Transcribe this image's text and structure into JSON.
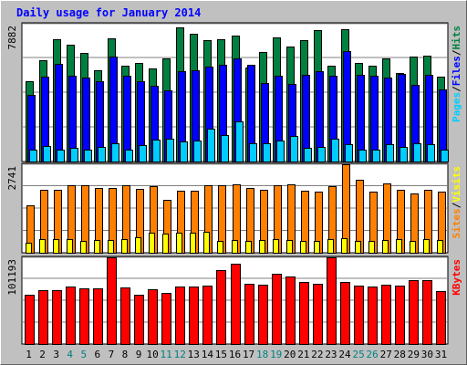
{
  "title": "Daily usage for January 2014",
  "chart_data": [
    {
      "type": "bar",
      "name": "hits-pages-files",
      "ymax_label": "7882",
      "ymax": 7882,
      "right_label": [
        {
          "text": "Pages",
          "color": "#00ccff"
        },
        {
          "text": "/",
          "color": "#000000"
        },
        {
          "text": "Files",
          "color": "#0000ff"
        },
        {
          "text": "/",
          "color": "#000000"
        },
        {
          "text": "Hits",
          "color": "#008040"
        }
      ],
      "series": [
        {
          "name": "Hits",
          "color": "#008040",
          "values": [
            4550,
            5740,
            6950,
            6660,
            6150,
            5160,
            7020,
            5430,
            5600,
            5290,
            5840,
            7600,
            7280,
            6920,
            6950,
            7170,
            5360,
            6200,
            7070,
            6540,
            6900,
            7450,
            5420,
            7520,
            5620,
            5420,
            5840,
            5040,
            5960,
            5990,
            4830
          ]
        },
        {
          "name": "Files",
          "color": "#0000ff",
          "values": [
            3780,
            4810,
            5550,
            4850,
            4760,
            4580,
            5970,
            4890,
            4540,
            4320,
            4050,
            5150,
            5180,
            5370,
            5500,
            5870,
            5480,
            4440,
            4850,
            4430,
            4930,
            5110,
            4870,
            6270,
            4910,
            4900,
            4780,
            5000,
            4360,
            4920,
            4090
          ]
        },
        {
          "name": "Pages",
          "color": "#00ccff",
          "values": [
            700,
            900,
            700,
            760,
            700,
            810,
            1050,
            700,
            930,
            1260,
            1310,
            1130,
            1180,
            1870,
            1510,
            2280,
            1020,
            1030,
            1170,
            1450,
            790,
            840,
            1280,
            960,
            700,
            700,
            1010,
            830,
            1050,
            1010,
            700
          ]
        }
      ]
    },
    {
      "type": "bar",
      "name": "visits-sites",
      "ymax_label": "2741",
      "ymax": 2741,
      "right_label": [
        {
          "text": "Sites",
          "color": "#ff8000"
        },
        {
          "text": "/",
          "color": "#000000"
        },
        {
          "text": "Visits",
          "color": "#ffff00"
        }
      ],
      "series": [
        {
          "name": "Visits",
          "color": "#ff8000",
          "values": [
            1460,
            1940,
            1940,
            2080,
            2080,
            1990,
            1990,
            2080,
            1970,
            2030,
            1630,
            1890,
            1890,
            2080,
            2080,
            2110,
            1990,
            1940,
            2080,
            2100,
            1890,
            1860,
            2050,
            2810,
            2230,
            1870,
            2130,
            1940,
            1810,
            1940,
            1880
          ]
        },
        {
          "name": "Sites",
          "color": "#ffff00",
          "values": [
            320,
            420,
            410,
            420,
            370,
            390,
            400,
            410,
            470,
            620,
            600,
            620,
            620,
            630,
            370,
            400,
            350,
            400,
            410,
            400,
            370,
            350,
            420,
            440,
            350,
            360,
            400,
            410,
            350,
            410,
            400
          ]
        }
      ]
    },
    {
      "type": "bar",
      "name": "kbytes",
      "ymax_label": "101193",
      "ymax": 101193,
      "right_label": [
        {
          "text": "KBytes",
          "color": "#ff0000"
        }
      ],
      "series": [
        {
          "name": "KBytes",
          "color": "#ff0000",
          "values": [
            56500,
            62700,
            62700,
            66400,
            64000,
            64000,
            101200,
            65700,
            56500,
            63300,
            59000,
            66400,
            66400,
            67000,
            85400,
            92800,
            69800,
            68000,
            81100,
            78000,
            71700,
            69800,
            101800,
            71700,
            67000,
            66000,
            68000,
            67000,
            74000,
            74000,
            61000
          ]
        }
      ]
    }
  ],
  "x_labels": [
    "1",
    "2",
    "3",
    "4",
    "5",
    "6",
    "7",
    "8",
    "9",
    "10",
    "11",
    "12",
    "13",
    "14",
    "15",
    "16",
    "17",
    "18",
    "19",
    "20",
    "21",
    "22",
    "23",
    "24",
    "25",
    "26",
    "27",
    "28",
    "29",
    "30",
    "31"
  ],
  "x_label_colors": [
    "#000000",
    "#000000",
    "#000000",
    "#008080",
    "#008080",
    "#000000",
    "#000000",
    "#000000",
    "#000000",
    "#000000",
    "#008080",
    "#008080",
    "#000000",
    "#000000",
    "#000000",
    "#000000",
    "#000000",
    "#008080",
    "#008080",
    "#000000",
    "#000000",
    "#000000",
    "#000000",
    "#000000",
    "#008080",
    "#008080",
    "#000000",
    "#000000",
    "#000000",
    "#000000",
    "#000000"
  ],
  "colors": {
    "background": "#c0c0c0",
    "plot_background": "#ffffff",
    "title": "#0000ff",
    "gridline": "#808080"
  }
}
